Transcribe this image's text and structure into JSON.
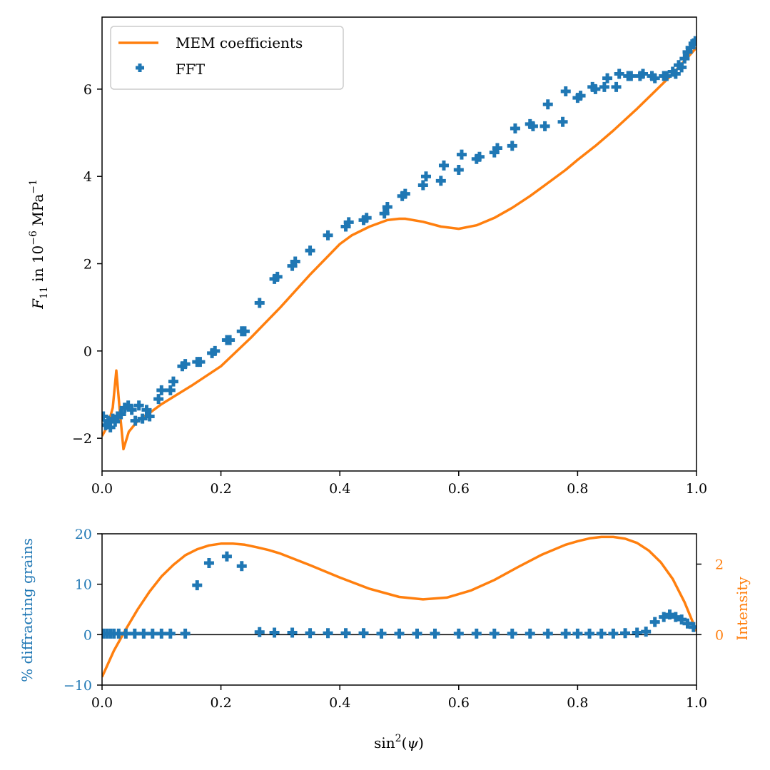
{
  "chart_data": [
    {
      "type": "line",
      "panel": "top",
      "xlabel": "",
      "ylabel_parts": {
        "var": "F",
        "sub": "11",
        "mid": " in 10",
        "exp": "−6",
        "unit": " MPa",
        "unit_exp": "−1"
      },
      "xlim": [
        0.0,
        1.0
      ],
      "ylim": [
        -2.75,
        7.65
      ],
      "xticks": [
        "0.0",
        "0.2",
        "0.4",
        "0.6",
        "0.8",
        "1.0"
      ],
      "xtick_values": [
        0.0,
        0.2,
        0.4,
        0.6,
        0.8,
        1.0
      ],
      "yticks": [
        "−2",
        "0",
        "2",
        "4",
        "6"
      ],
      "ytick_values": [
        -2,
        0,
        2,
        4,
        6
      ],
      "legend": {
        "position": "top-left",
        "entries": [
          "MEM coefficients",
          "FFT"
        ]
      },
      "colors": {
        "line": "#ff7f0e",
        "markers": "#1f77b4"
      },
      "series": [
        {
          "name": "MEM coefficients",
          "kind": "line",
          "x": [
            0.0,
            0.01,
            0.018,
            0.024,
            0.03,
            0.036,
            0.045,
            0.06,
            0.08,
            0.1,
            0.15,
            0.2,
            0.25,
            0.3,
            0.35,
            0.4,
            0.42,
            0.45,
            0.48,
            0.5,
            0.51,
            0.54,
            0.57,
            0.6,
            0.63,
            0.66,
            0.69,
            0.72,
            0.75,
            0.78,
            0.8,
            0.83,
            0.86,
            0.9,
            0.93,
            0.96,
            0.98,
            1.0
          ],
          "y": [
            -1.95,
            -1.7,
            -1.3,
            -0.45,
            -1.4,
            -2.25,
            -1.85,
            -1.6,
            -1.42,
            -1.22,
            -0.8,
            -0.35,
            0.3,
            1.0,
            1.75,
            2.45,
            2.65,
            2.85,
            3.0,
            3.03,
            3.03,
            2.96,
            2.85,
            2.8,
            2.88,
            3.05,
            3.28,
            3.55,
            3.85,
            4.15,
            4.38,
            4.7,
            5.05,
            5.55,
            5.95,
            6.35,
            6.65,
            6.95
          ]
        },
        {
          "name": "FFT",
          "kind": "scatter",
          "x": [
            0.002,
            0.006,
            0.01,
            0.014,
            0.018,
            0.022,
            0.026,
            0.032,
            0.038,
            0.044,
            0.05,
            0.056,
            0.062,
            0.068,
            0.075,
            0.08,
            0.095,
            0.1,
            0.115,
            0.12,
            0.135,
            0.14,
            0.16,
            0.165,
            0.185,
            0.19,
            0.21,
            0.215,
            0.235,
            0.24,
            0.265,
            0.29,
            0.295,
            0.32,
            0.325,
            0.35,
            0.38,
            0.41,
            0.415,
            0.44,
            0.445,
            0.475,
            0.48,
            0.505,
            0.51,
            0.54,
            0.545,
            0.57,
            0.575,
            0.6,
            0.605,
            0.63,
            0.635,
            0.66,
            0.665,
            0.69,
            0.695,
            0.72,
            0.725,
            0.745,
            0.75,
            0.775,
            0.78,
            0.8,
            0.805,
            0.825,
            0.83,
            0.845,
            0.85,
            0.865,
            0.87,
            0.885,
            0.89,
            0.905,
            0.91,
            0.925,
            0.93,
            0.945,
            0.95,
            0.96,
            0.965,
            0.97,
            0.975,
            0.98,
            0.985,
            0.99,
            0.995,
            0.998
          ],
          "y": [
            -1.5,
            -1.7,
            -1.6,
            -1.75,
            -1.55,
            -1.62,
            -1.5,
            -1.45,
            -1.3,
            -1.25,
            -1.35,
            -1.6,
            -1.25,
            -1.55,
            -1.35,
            -1.5,
            -1.1,
            -0.9,
            -0.9,
            -0.7,
            -0.35,
            -0.3,
            -0.25,
            -0.25,
            -0.05,
            0.0,
            0.25,
            0.25,
            0.45,
            0.45,
            1.1,
            1.65,
            1.7,
            1.95,
            2.05,
            2.3,
            2.65,
            2.85,
            2.95,
            3.0,
            3.05,
            3.15,
            3.3,
            3.55,
            3.6,
            3.8,
            4.0,
            3.9,
            4.25,
            4.15,
            4.5,
            4.4,
            4.45,
            4.55,
            4.65,
            4.7,
            5.1,
            5.2,
            5.15,
            5.15,
            5.65,
            5.25,
            5.95,
            5.8,
            5.85,
            6.05,
            6.0,
            6.05,
            6.25,
            6.05,
            6.35,
            6.3,
            6.3,
            6.3,
            6.35,
            6.3,
            6.25,
            6.3,
            6.3,
            6.4,
            6.35,
            6.55,
            6.5,
            6.7,
            6.85,
            6.95,
            7.05,
            7.1
          ]
        }
      ]
    },
    {
      "type": "line",
      "panel": "bottom",
      "xlabel_parts": {
        "pre": "sin",
        "exp": "2",
        "post": "(",
        "var": "ψ",
        "close": ")"
      },
      "ylabel": "% diffracting grains",
      "ylabel_right": "Intensity",
      "xlim": [
        0.0,
        1.0
      ],
      "ylim": [
        -10,
        20
      ],
      "ylim_right": [
        -1.43,
        2.86
      ],
      "xticks": [
        "0.0",
        "0.2",
        "0.4",
        "0.6",
        "0.8",
        "1.0"
      ],
      "xtick_values": [
        0.0,
        0.2,
        0.4,
        0.6,
        0.8,
        1.0
      ],
      "yticks": [
        "−10",
        "0",
        "10",
        "20"
      ],
      "ytick_values": [
        -10,
        0,
        10,
        20
      ],
      "yticks_right": [
        "0",
        "2"
      ],
      "ytick_values_right": [
        0,
        2
      ],
      "zero_line": true,
      "colors": {
        "line": "#ff7f0e",
        "markers": "#1f77b4",
        "left_axis": "#1f77b4",
        "right_axis": "#ff7f0e"
      },
      "series": [
        {
          "name": "Intensity",
          "kind": "line",
          "axis": "right",
          "x": [
            0.0,
            0.02,
            0.04,
            0.06,
            0.08,
            0.1,
            0.12,
            0.14,
            0.16,
            0.18,
            0.2,
            0.22,
            0.24,
            0.26,
            0.28,
            0.3,
            0.35,
            0.4,
            0.45,
            0.5,
            0.54,
            0.58,
            0.62,
            0.66,
            0.7,
            0.74,
            0.78,
            0.8,
            0.82,
            0.84,
            0.86,
            0.88,
            0.9,
            0.92,
            0.94,
            0.96,
            0.98,
            1.0
          ],
          "y": [
            -1.2,
            -0.45,
            0.15,
            0.72,
            1.22,
            1.65,
            1.98,
            2.25,
            2.42,
            2.53,
            2.58,
            2.58,
            2.55,
            2.48,
            2.4,
            2.3,
            1.97,
            1.62,
            1.3,
            1.07,
            1.0,
            1.05,
            1.25,
            1.55,
            1.92,
            2.27,
            2.55,
            2.65,
            2.73,
            2.77,
            2.77,
            2.72,
            2.6,
            2.38,
            2.05,
            1.58,
            0.92,
            0.1
          ]
        },
        {
          "name": "% diffracting grains",
          "kind": "scatter",
          "axis": "left",
          "x": [
            0.002,
            0.008,
            0.014,
            0.02,
            0.028,
            0.04,
            0.055,
            0.07,
            0.085,
            0.1,
            0.115,
            0.14,
            0.16,
            0.18,
            0.21,
            0.235,
            0.265,
            0.29,
            0.32,
            0.35,
            0.38,
            0.41,
            0.44,
            0.47,
            0.5,
            0.53,
            0.56,
            0.6,
            0.63,
            0.66,
            0.69,
            0.72,
            0.75,
            0.78,
            0.8,
            0.82,
            0.84,
            0.86,
            0.88,
            0.9,
            0.915,
            0.93,
            0.945,
            0.955,
            0.965,
            0.975,
            0.985,
            0.995
          ],
          "y": [
            0.2,
            0.2,
            0.2,
            0.2,
            0.2,
            0.2,
            0.2,
            0.2,
            0.2,
            0.2,
            0.2,
            0.2,
            9.8,
            14.2,
            15.5,
            13.6,
            0.5,
            0.4,
            0.4,
            0.3,
            0.3,
            0.3,
            0.3,
            0.2,
            0.2,
            0.2,
            0.2,
            0.2,
            0.2,
            0.2,
            0.2,
            0.2,
            0.2,
            0.2,
            0.2,
            0.2,
            0.2,
            0.2,
            0.3,
            0.4,
            0.6,
            2.5,
            3.5,
            4.0,
            3.5,
            3.0,
            2.2,
            1.5
          ]
        }
      ]
    }
  ]
}
